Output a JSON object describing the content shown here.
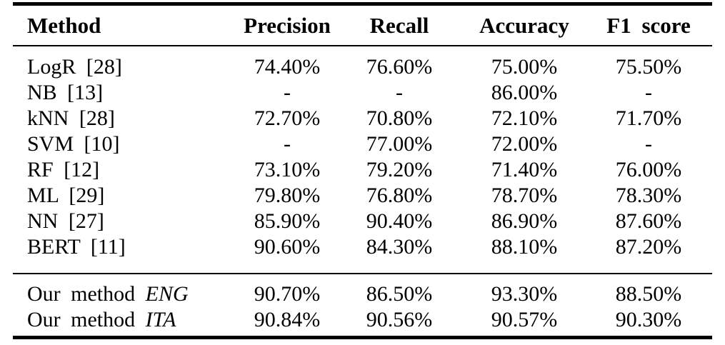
{
  "colors": {
    "background": "#ffffff",
    "text": "#000000",
    "rule": "#000000"
  },
  "table": {
    "headers": [
      "Method",
      "Precision",
      "Recall",
      "Accuracy",
      "F1 score"
    ],
    "baseline_rows": [
      {
        "method": "LogR [28]",
        "precision": "74.40%",
        "recall": "76.60%",
        "accuracy": "75.00%",
        "f1": "75.50%"
      },
      {
        "method": "NB [13]",
        "precision": "-",
        "recall": "-",
        "accuracy": "86.00%",
        "f1": "-"
      },
      {
        "method": "kNN [28]",
        "precision": "72.70%",
        "recall": "70.80%",
        "accuracy": "72.10%",
        "f1": "71.70%"
      },
      {
        "method": "SVM [10]",
        "precision": "-",
        "recall": "77.00%",
        "accuracy": "72.00%",
        "f1": "-"
      },
      {
        "method": "RF [12]",
        "precision": "73.10%",
        "recall": "79.20%",
        "accuracy": "71.40%",
        "f1": "76.00%"
      },
      {
        "method": "ML [29]",
        "precision": "79.80%",
        "recall": "76.80%",
        "accuracy": "78.70%",
        "f1": "78.30%"
      },
      {
        "method": "NN [27]",
        "precision": "85.90%",
        "recall": "90.40%",
        "accuracy": "86.90%",
        "f1": "87.60%"
      },
      {
        "method": "BERT [11]",
        "precision": "90.60%",
        "recall": "84.30%",
        "accuracy": "88.10%",
        "f1": "87.20%"
      }
    ],
    "our_rows": [
      {
        "method_prefix": "Our method",
        "method_variant": "ENG",
        "precision": "90.70%",
        "recall": "86.50%",
        "accuracy": "93.30%",
        "f1": "88.50%"
      },
      {
        "method_prefix": "Our method",
        "method_variant": "ITA",
        "precision": "90.84%",
        "recall": "90.56%",
        "accuracy": "90.57%",
        "f1": "90.30%"
      }
    ]
  }
}
